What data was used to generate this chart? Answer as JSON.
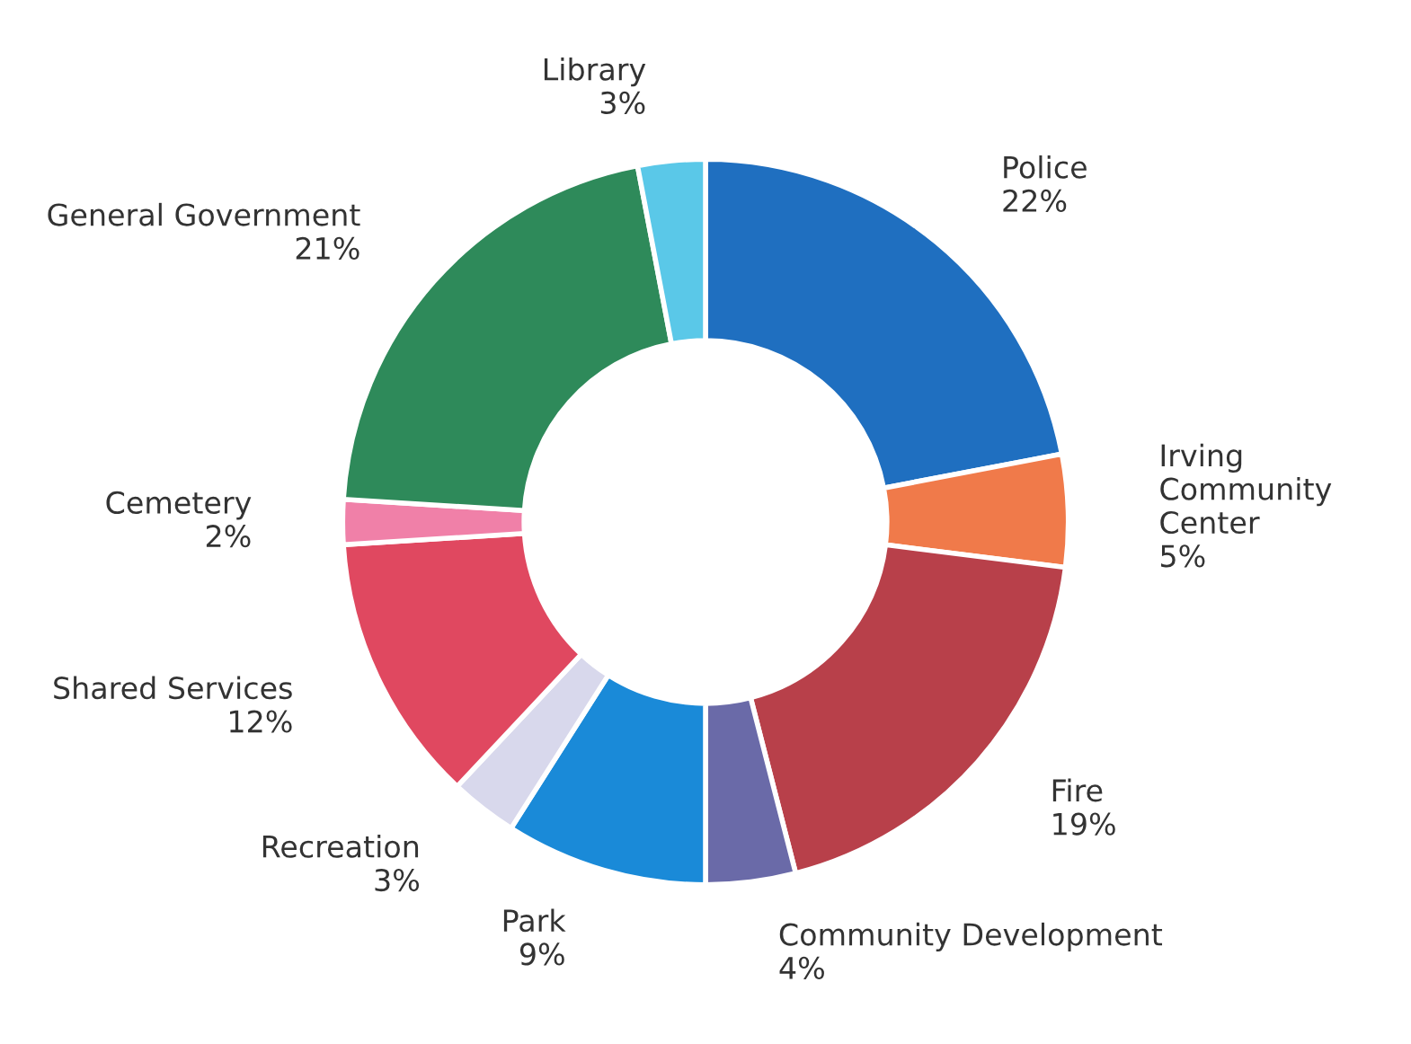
{
  "chart_data": {
    "type": "donut",
    "categories": [
      "Police",
      "Irving Community Center",
      "Fire",
      "Community Development",
      "Park",
      "Recreation",
      "Shared Services",
      "Cemetery",
      "General Government",
      "Library"
    ],
    "values": [
      22,
      5,
      19,
      4,
      9,
      3,
      12,
      2,
      21,
      3
    ],
    "value_labels": [
      "22%",
      "5%",
      "19%",
      "4%",
      "9%",
      "3%",
      "12%",
      "2%",
      "21%",
      "3%"
    ],
    "colors": [
      "#1f6fc0",
      "#f07a4a",
      "#b8404a",
      "#6a6aa8",
      "#1a8ad8",
      "#d8d8ec",
      "#e04860",
      "#f080a8",
      "#2e8a5a",
      "#5ac8e8"
    ],
    "legend": false
  }
}
